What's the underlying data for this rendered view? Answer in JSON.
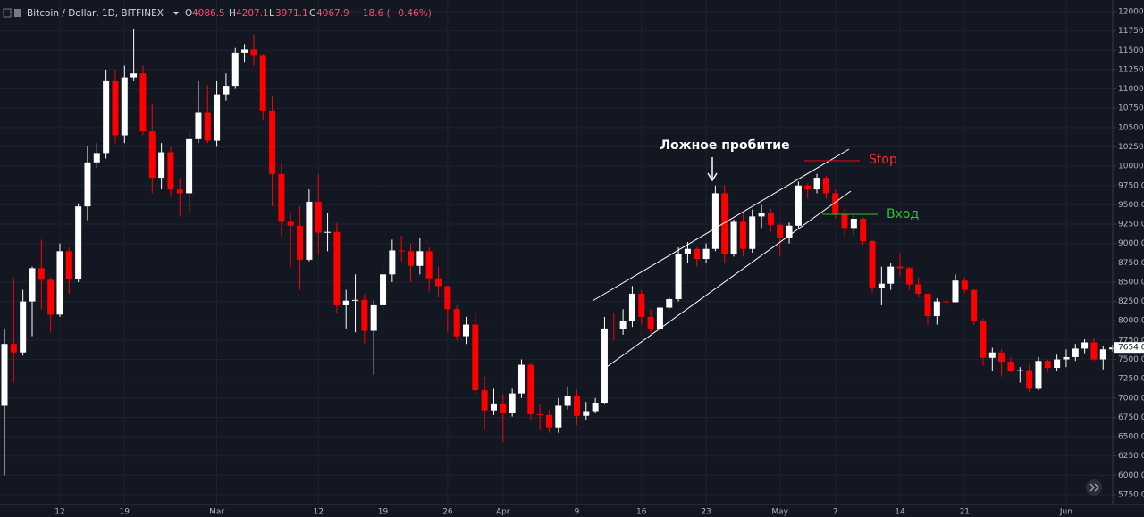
{
  "chart_data": {
    "type": "candlestick",
    "title": "Bitcoin / Dollar, 1D, BITFINEX",
    "header": {
      "o_label": "O",
      "o": "4086.5",
      "h_label": "H",
      "h": "4207.1",
      "l_label": "L",
      "l": "3971.1",
      "c_label": "C",
      "c": "4067.9",
      "change": "−18.6 (−0.46%)"
    },
    "up_color": "#ffffff",
    "down_color": "#ff0000",
    "categories": [
      null,
      null,
      null,
      null,
      null,
      null,
      "12",
      null,
      null,
      null,
      null,
      null,
      null,
      "19",
      null,
      null,
      null,
      null,
      null,
      null,
      null,
      null,
      null,
      "Mar",
      null,
      null,
      null,
      null,
      null,
      null,
      null,
      null,
      null,
      null,
      "12",
      null,
      null,
      null,
      null,
      null,
      null,
      "19",
      null,
      null,
      null,
      null,
      null,
      null,
      "26",
      null,
      null,
      null,
      null,
      null,
      "Apr",
      null,
      null,
      null,
      null,
      null,
      null,
      null,
      "9",
      null,
      null,
      null,
      null,
      null,
      null,
      "16",
      null,
      null,
      null,
      null,
      null,
      null,
      "23",
      null,
      null,
      null,
      null,
      null,
      null,
      null,
      "May",
      null,
      null,
      null,
      null,
      null,
      "7",
      null,
      null,
      null,
      null,
      null,
      null,
      "14",
      null,
      null,
      null,
      null,
      null,
      null,
      "21",
      null,
      null,
      null,
      null,
      null,
      null,
      null,
      null,
      null,
      null,
      "Jun",
      null,
      null,
      null,
      null,
      null
    ],
    "open": [
      6900,
      7700,
      7590,
      8250,
      8680,
      8530,
      8080,
      8900,
      8540,
      9480,
      10050,
      10170,
      11100,
      10400,
      11150,
      11200,
      10450,
      9850,
      10180,
      9700,
      9650,
      10350,
      10700,
      10330,
      10930,
      11040,
      11470,
      11510,
      11430,
      10720,
      9900,
      9280,
      9230,
      8790,
      9540,
      9140,
      9150,
      8200,
      8260,
      8270,
      7870,
      8200,
      8600,
      8910,
      8900,
      8710,
      8900,
      8550,
      8450,
      8150,
      7800,
      7950,
      7100,
      6840,
      6930,
      6810,
      7060,
      7430,
      6790,
      6780,
      6620,
      6900,
      7030,
      6770,
      6830,
      6940,
      7900,
      7890,
      8000,
      8350,
      8050,
      7890,
      8170,
      8280,
      8860,
      8930,
      8800,
      8930,
      9650,
      8860,
      9280,
      8930,
      9350,
      9400,
      9240,
      9070,
      9230,
      9750,
      9700,
      9850,
      9650,
      9380,
      9200,
      9320,
      9030,
      8430,
      8480,
      8700,
      8680,
      8470,
      8350,
      8060,
      8250,
      8240,
      8520,
      8400,
      8000,
      7520,
      7590,
      7470,
      7350,
      7360,
      7120,
      7480,
      7390,
      7500,
      7530,
      7640,
      7720,
      7500,
      7630
    ],
    "high": [
      7900,
      8550,
      8400,
      8700,
      9050,
      8560,
      9000,
      8950,
      9520,
      10260,
      10300,
      11250,
      11250,
      11300,
      11780,
      11300,
      10800,
      10300,
      10250,
      9850,
      10450,
      11100,
      11050,
      11100,
      11200,
      11530,
      11580,
      11700,
      11450,
      10900,
      10050,
      9400,
      9480,
      9700,
      9900,
      9400,
      9270,
      8400,
      8600,
      8350,
      8260,
      8700,
      9050,
      9100,
      9000,
      9070,
      8950,
      8700,
      8450,
      8200,
      8050,
      8100,
      7280,
      7120,
      7050,
      7120,
      7500,
      7450,
      6920,
      6850,
      7000,
      7150,
      7110,
      6950,
      7000,
      8050,
      8100,
      8150,
      8450,
      8400,
      8150,
      8200,
      8300,
      8950,
      9020,
      8950,
      9000,
      9750,
      9750,
      9310,
      9400,
      9440,
      9500,
      9450,
      9260,
      9270,
      9800,
      9780,
      9900,
      9880,
      9700,
      9450,
      9380,
      9340,
      9050,
      8700,
      8750,
      8880,
      8700,
      8560,
      8350,
      8290,
      8300,
      8600,
      8560,
      8400,
      8030,
      7650,
      7630,
      7530,
      7400,
      7430,
      7530,
      7500,
      7560,
      7630,
      7700,
      7760,
      7770,
      7680,
      7690
    ],
    "low": [
      6000,
      7200,
      7550,
      7800,
      8150,
      7850,
      8050,
      8350,
      8500,
      9300,
      9980,
      10100,
      10300,
      10300,
      11100,
      10400,
      9650,
      9700,
      9600,
      9350,
      9400,
      10300,
      10300,
      10250,
      10850,
      11000,
      11350,
      11300,
      10600,
      9480,
      9100,
      8700,
      8400,
      8770,
      8850,
      8900,
      8100,
      7900,
      7850,
      7700,
      7300,
      8100,
      8500,
      8770,
      8500,
      8600,
      8380,
      8300,
      7850,
      7750,
      7700,
      7050,
      6600,
      6780,
      6430,
      6760,
      7000,
      6720,
      6580,
      6550,
      6550,
      6850,
      6650,
      6720,
      6800,
      6930,
      7750,
      7820,
      7920,
      7950,
      7820,
      7850,
      8150,
      8250,
      8750,
      8700,
      8750,
      8900,
      8750,
      8830,
      8830,
      8880,
      9200,
      9150,
      8840,
      9000,
      9200,
      9580,
      9650,
      9580,
      9330,
      9100,
      9100,
      8980,
      8360,
      8200,
      8400,
      8570,
      8400,
      8300,
      7950,
      7950,
      8170,
      8240,
      8360,
      7950,
      7420,
      7350,
      7280,
      7330,
      7200,
      7080,
      7100,
      7330,
      7350,
      7400,
      7480,
      7580,
      7480,
      7370,
      7600
    ],
    "close": [
      7700,
      7590,
      8250,
      8680,
      8530,
      8080,
      8900,
      8540,
      9480,
      10050,
      10170,
      11100,
      10400,
      11150,
      11200,
      10450,
      9850,
      10180,
      9700,
      9650,
      10350,
      10700,
      10330,
      10930,
      11040,
      11470,
      11510,
      11430,
      10720,
      9900,
      9280,
      9230,
      8790,
      9540,
      9140,
      9150,
      8200,
      8260,
      8270,
      7870,
      8200,
      8600,
      8910,
      8900,
      8710,
      8900,
      8550,
      8450,
      8150,
      7800,
      7950,
      7100,
      6840,
      6930,
      6810,
      7060,
      7430,
      6790,
      6780,
      6620,
      6900,
      7030,
      6770,
      6830,
      6940,
      7900,
      7890,
      8000,
      8350,
      8050,
      7890,
      8170,
      8280,
      8860,
      8930,
      8800,
      8930,
      9650,
      8860,
      9280,
      8930,
      9350,
      9400,
      9240,
      9070,
      9230,
      9750,
      9700,
      9850,
      9650,
      9380,
      9200,
      9320,
      9030,
      8430,
      8480,
      8700,
      8680,
      8470,
      8350,
      8060,
      8250,
      8240,
      8520,
      8400,
      8000,
      7520,
      7590,
      7470,
      7350,
      7360,
      7120,
      7480,
      7390,
      7500,
      7530,
      7640,
      7720,
      7500,
      7630,
      7654
    ],
    "last_price": {
      "value": 7654,
      "label": "7654.0"
    },
    "ylim": [
      5750,
      12000
    ],
    "yticks": [
      {
        "value": 5750,
        "label": "5750.0"
      },
      {
        "value": 6000,
        "label": "6000.0"
      },
      {
        "value": 6250,
        "label": "6250.0"
      },
      {
        "value": 6500,
        "label": "6500.0"
      },
      {
        "value": 6750,
        "label": "6750.0"
      },
      {
        "value": 7000,
        "label": "7000.0"
      },
      {
        "value": 7250,
        "label": "7250.0"
      },
      {
        "value": 7500,
        "label": "7500.0"
      },
      {
        "value": 7750,
        "label": "7750.0"
      },
      {
        "value": 8000,
        "label": "8000.0"
      },
      {
        "value": 8250,
        "label": "8250.0"
      },
      {
        "value": 8500,
        "label": "8500.0"
      },
      {
        "value": 8750,
        "label": "8750.0"
      },
      {
        "value": 9000,
        "label": "9000.0"
      },
      {
        "value": 9250,
        "label": "9250.0"
      },
      {
        "value": 9500,
        "label": "9500.0"
      },
      {
        "value": 9750,
        "label": "9750.0"
      },
      {
        "value": 10000,
        "label": "10000.0"
      },
      {
        "value": 10250,
        "label": "10250.0"
      },
      {
        "value": 10500,
        "label": "10500.0"
      },
      {
        "value": 10750,
        "label": "10750.0"
      },
      {
        "value": 11000,
        "label": "11000.0"
      },
      {
        "value": 11250,
        "label": "11250.0"
      },
      {
        "value": 11500,
        "label": "11500.0"
      },
      {
        "value": 11750,
        "label": "11750.0"
      },
      {
        "value": 12000,
        "label": "12000.0"
      }
    ],
    "grid": true,
    "annotations": {
      "false_breakout": "Ложное пробитие",
      "stop": "Stop",
      "entry": "Вход"
    }
  }
}
